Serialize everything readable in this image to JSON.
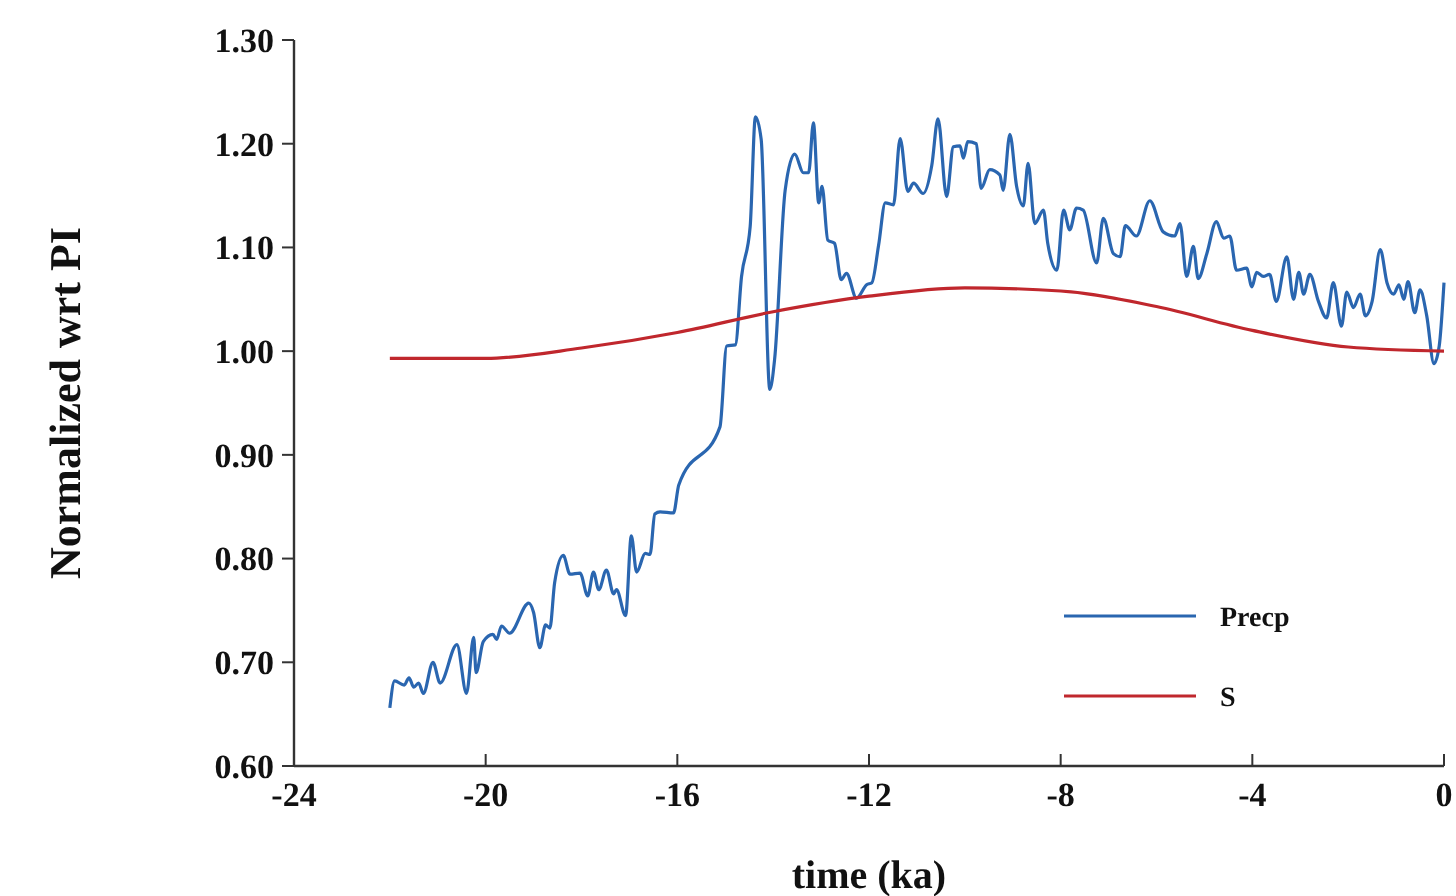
{
  "chart_data": {
    "type": "line",
    "xlabel": "time (ka)",
    "ylabel": "Normalized wrt PI",
    "xlim": [
      -24,
      0
    ],
    "xticks": [
      -24,
      -20,
      -16,
      -12,
      -8,
      -4,
      0
    ],
    "ylim": [
      0.6,
      1.3
    ],
    "yticks": [
      {
        "value": 0.6,
        "label": "0.60"
      },
      {
        "value": 0.7,
        "label": "0.70"
      },
      {
        "value": 0.8,
        "label": "0.80"
      },
      {
        "value": 0.9,
        "label": "0.90"
      },
      {
        "value": 1.0,
        "label": "1.00"
      },
      {
        "value": 1.1,
        "label": "1.10"
      },
      {
        "value": 1.2,
        "label": "1.20"
      },
      {
        "value": 1.3,
        "label": "1.30"
      }
    ],
    "grid": false,
    "legend": "bottom right",
    "marker": "none",
    "line_style": "solid",
    "series": [
      {
        "name": "Precp",
        "color": "#2a66b0",
        "x": [
          -22.0,
          -21.9,
          -21.7,
          -21.6,
          -21.5,
          -21.4,
          -21.3,
          -21.1,
          -20.95,
          -20.6,
          -20.4,
          -20.25,
          -20.2,
          -20.05,
          -19.85,
          -19.77,
          -19.67,
          -19.5,
          -19.1,
          -19.0,
          -18.87,
          -18.75,
          -18.66,
          -18.56,
          -18.38,
          -18.24,
          -18.03,
          -17.87,
          -17.75,
          -17.64,
          -17.48,
          -17.33,
          -17.27,
          -17.08,
          -16.96,
          -16.85,
          -16.67,
          -16.57,
          -16.47,
          -16.36,
          -16.08,
          -15.97,
          -15.11,
          -14.97,
          -14.79,
          -14.66,
          -14.48,
          -14.37,
          -14.25,
          -14.07,
          -13.97,
          -13.75,
          -13.55,
          -13.37,
          -13.26,
          -13.16,
          -13.05,
          -12.98,
          -12.86,
          -12.72,
          -12.58,
          -12.47,
          -12.26,
          -12.05,
          -11.94,
          -11.8,
          -11.66,
          -11.49,
          -11.35,
          -11.19,
          -11.07,
          -10.87,
          -10.69,
          -10.56,
          -10.38,
          -10.24,
          -10.1,
          -10.03,
          -9.94,
          -9.76,
          -9.66,
          -9.48,
          -9.27,
          -9.2,
          -9.06,
          -8.92,
          -8.78,
          -8.68,
          -8.54,
          -8.36,
          -8.27,
          -8.08,
          -7.94,
          -7.81,
          -7.67,
          -7.53,
          -7.25,
          -7.11,
          -6.9,
          -6.76,
          -6.65,
          -6.42,
          -6.14,
          -5.86,
          -5.62,
          -5.51,
          -5.37,
          -5.23,
          -5.13,
          -4.95,
          -4.75,
          -4.6,
          -4.47,
          -4.33,
          -4.12,
          -4.01,
          -3.91,
          -3.77,
          -3.64,
          -3.5,
          -3.28,
          -3.14,
          -3.03,
          -2.93,
          -2.8,
          -2.62,
          -2.45,
          -2.31,
          -2.14,
          -2.03,
          -1.89,
          -1.75,
          -1.64,
          -1.5,
          -1.33,
          -1.19,
          -1.05,
          -0.94,
          -0.84,
          -0.75,
          -0.61,
          -0.5,
          -0.36,
          -0.21,
          -0.1,
          0.0
        ],
        "values": [
          0.656,
          0.682,
          0.678,
          0.685,
          0.676,
          0.68,
          0.67,
          0.7,
          0.68,
          0.717,
          0.67,
          0.724,
          0.69,
          0.72,
          0.727,
          0.722,
          0.735,
          0.728,
          0.757,
          0.748,
          0.714,
          0.736,
          0.733,
          0.777,
          0.803,
          0.785,
          0.786,
          0.764,
          0.787,
          0.77,
          0.789,
          0.766,
          0.77,
          0.745,
          0.822,
          0.787,
          0.805,
          0.804,
          0.843,
          0.845,
          0.844,
          0.871,
          0.927,
          1.005,
          1.006,
          1.072,
          1.12,
          1.226,
          1.204,
          0.963,
          0.992,
          1.155,
          1.19,
          1.172,
          1.172,
          1.22,
          1.143,
          1.159,
          1.107,
          1.104,
          1.069,
          1.075,
          1.051,
          1.064,
          1.066,
          1.102,
          1.143,
          1.141,
          1.205,
          1.154,
          1.162,
          1.152,
          1.179,
          1.224,
          1.149,
          1.197,
          1.198,
          1.186,
          1.202,
          1.2,
          1.157,
          1.175,
          1.17,
          1.155,
          1.209,
          1.159,
          1.14,
          1.181,
          1.123,
          1.136,
          1.104,
          1.078,
          1.136,
          1.117,
          1.138,
          1.136,
          1.085,
          1.128,
          1.094,
          1.091,
          1.121,
          1.111,
          1.145,
          1.115,
          1.111,
          1.123,
          1.072,
          1.101,
          1.07,
          1.094,
          1.125,
          1.109,
          1.111,
          1.078,
          1.08,
          1.062,
          1.076,
          1.072,
          1.074,
          1.048,
          1.091,
          1.05,
          1.076,
          1.055,
          1.074,
          1.048,
          1.032,
          1.066,
          1.024,
          1.057,
          1.042,
          1.055,
          1.034,
          1.048,
          1.098,
          1.066,
          1.055,
          1.064,
          1.05,
          1.067,
          1.037,
          1.059,
          1.034,
          0.988,
          1.005,
          1.066
        ]
      },
      {
        "name": "S",
        "color": "#c0272d",
        "x": [
          -22,
          -20,
          -18,
          -16,
          -14,
          -12,
          -10,
          -8,
          -6,
          -4,
          -2,
          0
        ],
        "values": [
          0.993,
          0.993,
          1.003,
          1.018,
          1.038,
          1.053,
          1.061,
          1.058,
          1.043,
          1.02,
          1.004,
          1.0
        ]
      }
    ]
  }
}
